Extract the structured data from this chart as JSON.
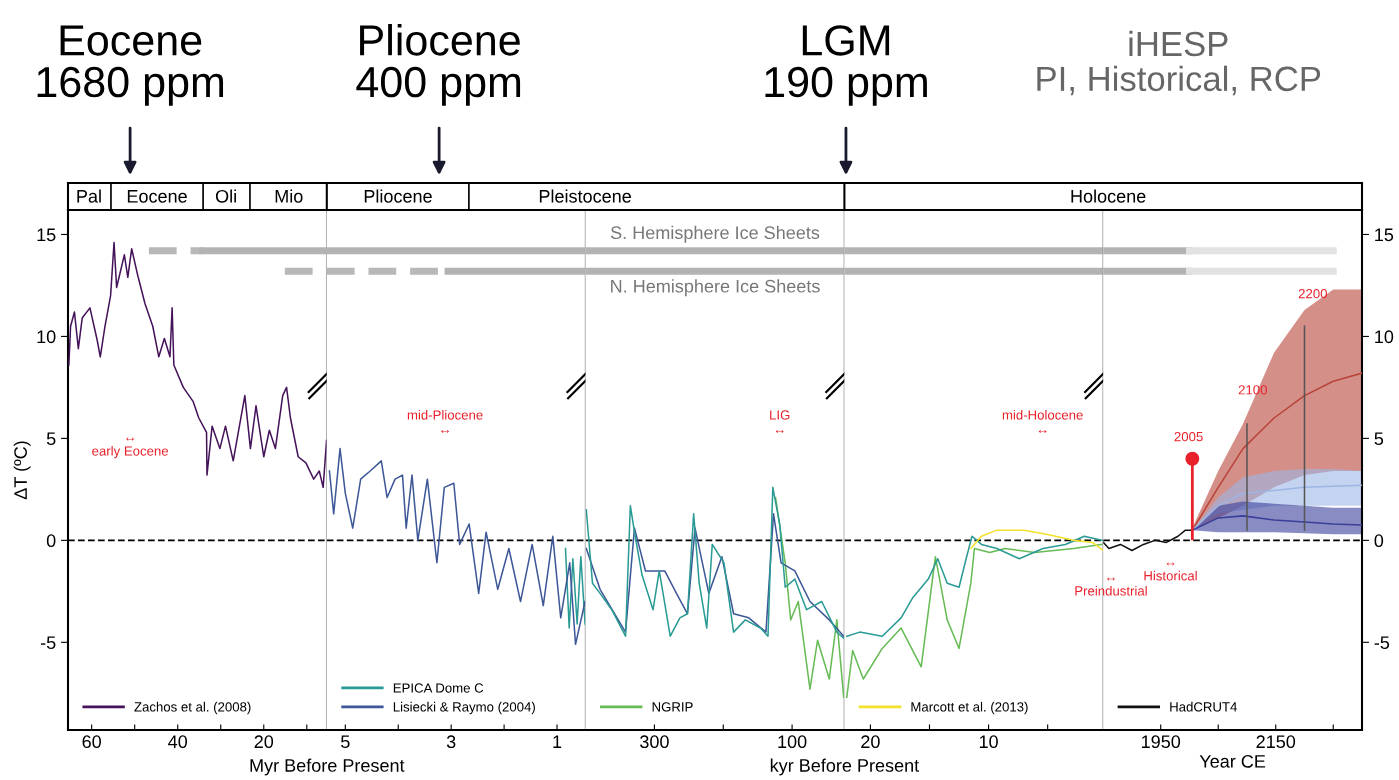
{
  "chart_data": [
    {
      "type": "line",
      "ylabel": "ΔT (ºC)",
      "xlabel": "Myr Before Present",
      "xlim": [
        65.5,
        5.35
      ],
      "xticks": [
        60,
        {
          "value": 50,
          "label": null
        },
        40,
        {
          "value": 30,
          "label": null
        },
        20,
        {
          "value": 10,
          "label": null
        }
      ],
      "ylim": [
        -9.3,
        16.2
      ],
      "yticks": [
        -5,
        0,
        5,
        10,
        15
      ],
      "legend": "lower left",
      "ref_lines": [
        {
          "axis": "y",
          "value": 0,
          "line_style": "dashed",
          "color": "#000000"
        }
      ],
      "annotations": [
        "Eocene\n1680 ppm",
        "↔\nearly Eocene",
        "Pal",
        "Eocene",
        "Oli",
        "Mio"
      ],
      "series": [
        {
          "type": "step",
          "color": "#b8b8b8",
          "line_style": "dashed",
          "x": [
            46.7,
            34.2
          ],
          "values": [
            14.2,
            14.2
          ]
        },
        {
          "type": "step",
          "color": "#b3b3b3",
          "line_style": "solid",
          "x": [
            34.2,
            5.35
          ],
          "values": [
            14.2,
            14.2
          ]
        },
        {
          "type": "step",
          "color": "#b8b8b8",
          "line_style": "dashed",
          "x": [
            15.1,
            5.35
          ],
          "values": [
            13.2,
            13.2
          ]
        },
        {
          "name": "Zachos et al. (2008)",
          "color": "#45135a",
          "x": [
            65.3,
            64.9,
            64.0,
            63.1,
            62.2,
            60.4,
            58.7,
            58.0,
            56.9,
            55.6,
            54.8,
            54.2,
            52.4,
            51.6,
            50.7,
            49.3,
            47.6,
            45.8,
            44.4,
            43.1,
            41.8,
            41.3,
            40.9,
            38.7,
            36.4,
            35.1,
            33.3,
            33.2,
            32.0,
            30.2,
            28.9,
            27.1,
            24.4,
            23.1,
            21.8,
            20.0,
            18.7,
            17.3,
            15.6,
            14.7,
            13.8,
            12.0,
            10.2,
            8.4,
            7.1,
            6.2,
            5.4
          ],
          "values": [
            8.6,
            10.5,
            11.2,
            9.4,
            10.9,
            11.4,
            9.8,
            9.0,
            10.5,
            12.0,
            14.6,
            12.4,
            14.0,
            12.9,
            14.3,
            13.0,
            11.6,
            10.5,
            9.0,
            9.9,
            9.0,
            11.4,
            8.6,
            7.5,
            6.8,
            6.0,
            5.3,
            3.2,
            5.6,
            4.5,
            5.6,
            3.9,
            7.1,
            4.5,
            6.6,
            4.1,
            5.4,
            4.5,
            7.1,
            7.5,
            6.0,
            4.1,
            3.8,
            3.0,
            3.4,
            2.6,
            4.9
          ]
        }
      ]
    },
    {
      "type": "line",
      "xlim": [
        5.35,
        0.46
      ],
      "xticks": [
        5,
        {
          "value": 4,
          "label": null
        },
        3,
        {
          "value": 2,
          "label": null
        },
        1
      ],
      "ylim": [
        -9.3,
        16.2
      ],
      "yticks": [
        -5,
        0,
        5,
        10,
        15
      ],
      "tick_labels": "x",
      "legend": "lower left",
      "ref_lines": [
        {
          "axis": "y",
          "value": 0,
          "line_style": "dashed",
          "color": "#000000"
        }
      ],
      "annotations": [
        "Pliocene\n400 ppm",
        "mid-Pliocene\n↔",
        "Pliocene",
        "Pleistocene"
      ],
      "series": [
        {
          "type": "step",
          "color": "#b3b3b3",
          "line_style": "solid",
          "x": [
            5.35,
            0.46
          ],
          "values": [
            14.2,
            14.2
          ]
        },
        {
          "type": "step",
          "color": "#b8b8b8",
          "line_style": "dashed",
          "x": [
            5.35,
            3.06
          ],
          "values": [
            13.2,
            13.2
          ]
        },
        {
          "type": "step",
          "color": "#b3b3b3",
          "line_style": "solid",
          "x": [
            3.06,
            0.46
          ],
          "values": [
            13.2,
            13.2
          ]
        },
        {
          "name": "EPICA Dome C",
          "color": "#2a9a94",
          "x": [
            0.84,
            0.77,
            0.7,
            0.62,
            0.55,
            0.47
          ],
          "values": [
            -0.4,
            -4.3,
            -0.9,
            -4.1,
            -0.8,
            -4.1
          ]
        },
        {
          "name": "Lisiecki & Raymo (2004)",
          "color": "#3d5797",
          "x": [
            5.3,
            5.22,
            5.1,
            5.0,
            4.86,
            4.71,
            4.53,
            4.32,
            4.21,
            4.06,
            3.92,
            3.85,
            3.74,
            3.63,
            3.45,
            3.27,
            3.13,
            2.95,
            2.84,
            2.66,
            2.48,
            2.34,
            2.12,
            1.91,
            1.69,
            1.47,
            1.26,
            1.08,
            0.93,
            0.76,
            0.65,
            0.47
          ],
          "values": [
            3.4,
            1.3,
            4.5,
            2.3,
            0.6,
            3.0,
            3.4,
            3.9,
            2.1,
            3.0,
            3.2,
            0.6,
            3.2,
            0.0,
            3.0,
            -1.1,
            2.6,
            2.8,
            -0.2,
            0.8,
            -2.6,
            0.4,
            -2.4,
            -0.4,
            -3.0,
            -0.2,
            -3.2,
            0.2,
            -3.8,
            -1.1,
            -5.1,
            -3.0
          ]
        }
      ]
    },
    {
      "type": "line",
      "xlabel": "kyr Before Present",
      "xlim": [
        400,
        24
      ],
      "xticks": [
        300,
        {
          "value": 200,
          "label": null
        },
        100
      ],
      "ylim": [
        -9.3,
        16.2
      ],
      "yticks": [
        -5,
        0,
        5,
        10,
        15
      ],
      "tick_labels": "x",
      "legend": "lower left",
      "ref_lines": [
        {
          "axis": "y",
          "value": 0,
          "line_style": "dashed",
          "color": "#000000"
        }
      ],
      "annotations": [
        "LGM\n190 ppm",
        "LIG\n↔"
      ],
      "series": [
        {
          "type": "step",
          "name": "S. Hemisphere Ice Sheets",
          "color": "#b3b3b3",
          "line_style": "solid",
          "x": [
            400,
            24
          ],
          "values": [
            14.2,
            14.2
          ]
        },
        {
          "type": "step",
          "name": "N. Hemisphere Ice Sheets",
          "color": "#b3b3b3",
          "line_style": "solid",
          "x": [
            400,
            24
          ],
          "values": [
            13.2,
            13.2
          ]
        },
        {
          "name": "NGRIP",
          "color": "#66bb55",
          "x": [
            124,
            110,
            102,
            91,
            74,
            63,
            46,
            35,
            25
          ],
          "values": [
            2.1,
            -1.1,
            -3.9,
            -3.0,
            -7.3,
            -4.9,
            -6.8,
            -3.9,
            -7.7
          ]
        },
        {
          "color": "#3d5797",
          "x": [
            399,
            379,
            342,
            329,
            313,
            285,
            268,
            252,
            241,
            221,
            202,
            185,
            163,
            138,
            127,
            116,
            96,
            74,
            46,
            25
          ],
          "values": [
            -0.4,
            -2.4,
            -4.5,
            0.6,
            -1.5,
            -1.5,
            -2.6,
            -3.6,
            0.6,
            -2.6,
            -0.8,
            -3.6,
            -3.8,
            -4.5,
            1.3,
            -1.1,
            -1.5,
            -3.0,
            -3.9,
            -4.7
          ]
        },
        {
          "color": "#2a9a94",
          "x": [
            399,
            390,
            379,
            362,
            342,
            335,
            329,
            318,
            302,
            293,
            277,
            263,
            252,
            243,
            235,
            224,
            216,
            199,
            185,
            168,
            146,
            135,
            128,
            118,
            110,
            96,
            79,
            57,
            35,
            25
          ],
          "values": [
            1.5,
            -2.1,
            -2.6,
            -3.4,
            -4.7,
            1.7,
            0.4,
            -1.7,
            -3.4,
            -1.5,
            -4.7,
            -3.8,
            -3.6,
            1.3,
            -2.1,
            -4.3,
            -0.2,
            -1.1,
            -4.5,
            -3.9,
            -4.3,
            -4.7,
            2.6,
            0.8,
            -2.3,
            -1.9,
            -3.4,
            -3.0,
            -4.5,
            -4.8
          ]
        }
      ]
    },
    {
      "type": "line",
      "xlim": [
        22.2,
        0.3
      ],
      "xticks": [
        20,
        {
          "value": 15,
          "label": null
        },
        10,
        {
          "value": 5,
          "label": null
        }
      ],
      "ylim": [
        -9.3,
        16.2
      ],
      "yticks": [
        -5,
        0,
        5,
        10,
        15
      ],
      "tick_labels": "x",
      "legend": "lower left",
      "ref_lines": [
        {
          "axis": "y",
          "value": 0,
          "line_style": "dashed",
          "color": "#000000"
        }
      ],
      "annotations": [
        "mid-Holocene\n↔",
        "Holocene"
      ],
      "series": [
        {
          "type": "step",
          "color": "#b3b3b3",
          "line_style": "solid",
          "x": [
            22.2,
            0.3
          ],
          "values": [
            14.2,
            14.2
          ]
        },
        {
          "type": "step",
          "color": "#b3b3b3",
          "line_style": "solid",
          "x": [
            22.2,
            0.3
          ],
          "values": [
            13.2,
            13.2
          ]
        },
        {
          "color": "#66bb55",
          "x": [
            22,
            21.5,
            20.6,
            19,
            17.4,
            15.7,
            14.5,
            13.5,
            12.5,
            11.5,
            11.2,
            9.9,
            8.6,
            6.1,
            2.8,
            0.4
          ],
          "values": [
            -7.7,
            -5.4,
            -6.8,
            -5.3,
            -4.3,
            -6.2,
            -0.8,
            -3.9,
            -5.3,
            -2.1,
            -0.4,
            -0.6,
            -0.4,
            -0.6,
            -0.4,
            -0.2
          ]
        },
        {
          "color": "#2a9a94",
          "x": [
            22,
            20.9,
            19,
            17.4,
            16.4,
            15.1,
            14.3,
            13.5,
            12.5,
            11.9,
            11.4,
            10.6,
            9.3,
            7.4,
            5.4,
            3.5,
            1.9,
            0.4
          ],
          "values": [
            -4.7,
            -4.5,
            -4.7,
            -3.8,
            -2.8,
            -1.9,
            -0.9,
            -2.1,
            -2.3,
            -0.9,
            0.2,
            -0.2,
            -0.4,
            -0.9,
            -0.4,
            -0.2,
            0.2,
            0.0
          ]
        },
        {
          "name": "Marcott et al. (2013)",
          "color": "#f3e02a",
          "x": [
            11.5,
            10.6,
            9.3,
            7.0,
            5.1,
            2.8,
            1.2,
            0.3
          ],
          "values": [
            -0.4,
            0.2,
            0.5,
            0.5,
            0.3,
            0.0,
            -0.1,
            -0.5
          ]
        }
      ]
    },
    {
      "type": "line",
      "xlabel": "Year CE",
      "xlim": [
        1850,
        2300
      ],
      "xticks": [
        1950,
        {
          "value": 2050,
          "label": null
        },
        2150,
        {
          "value": 2250,
          "label": null
        }
      ],
      "ylim": [
        -9.3,
        16.2
      ],
      "yticks": [
        -5,
        0,
        5,
        10,
        15
      ],
      "legend": "lower left",
      "ref_lines": [
        {
          "axis": "y",
          "value": 0,
          "line_style": "dashed",
          "color": "#000000"
        }
      ],
      "annotations": [
        "iHESP\nPI, Historical, RCP",
        "2005",
        "2100",
        "2200",
        "↔\nPreindustrial",
        "↔\nHistorical"
      ],
      "series": [
        {
          "type": "step",
          "color": "#b3b3b3",
          "line_style": "solid",
          "x": [
            1850,
            2000
          ],
          "values": [
            14.2,
            14.2
          ]
        },
        {
          "type": "step",
          "color": "#e2e2e2",
          "line_style": "solid",
          "x": [
            2000,
            2250
          ],
          "values": [
            14.2,
            14.2
          ]
        },
        {
          "type": "step",
          "color": "#b3b3b3",
          "line_style": "solid",
          "x": [
            1850,
            2000
          ],
          "values": [
            13.2,
            13.2
          ]
        },
        {
          "type": "step",
          "color": "#e2e2e2",
          "line_style": "solid",
          "x": [
            2000,
            2250
          ],
          "values": [
            13.2,
            13.2
          ]
        },
        {
          "color": "#b8443a",
          "x": [
            2005,
            2050,
            2093,
            2147,
            2200,
            2250,
            2300
          ],
          "values": [
            0.5,
            2.6,
            4.5,
            6.0,
            7.1,
            7.8,
            8.2
          ],
          "lower": [
            0.5,
            1.1,
            1.7,
            2.6,
            3.2,
            3.4,
            3.4
          ],
          "upper": [
            0.6,
            3.4,
            5.7,
            9.2,
            11.3,
            12.3,
            12.3
          ]
        },
        {
          "color": "#9db6e4",
          "x": [
            2005,
            2050,
            2093,
            2147,
            2200,
            2250,
            2300
          ],
          "values": [
            0.5,
            1.7,
            2.3,
            2.45,
            2.6,
            2.65,
            2.7
          ],
          "lower": [
            0.5,
            1.3,
            1.5,
            1.7,
            1.7,
            1.7,
            1.7
          ],
          "upper": [
            0.5,
            2.1,
            3.1,
            3.4,
            3.5,
            3.5,
            3.4
          ]
        },
        {
          "color": "#3a3f9a",
          "x": [
            2005,
            2050,
            2093,
            2147,
            2200,
            2250,
            2300
          ],
          "values": [
            0.5,
            1.1,
            1.2,
            1.0,
            0.9,
            0.8,
            0.75
          ],
          "lower": [
            0.5,
            0.4,
            0.4,
            0.4,
            0.35,
            0.3,
            0.3
          ],
          "upper": [
            0.5,
            1.7,
            1.9,
            1.8,
            1.7,
            1.6,
            1.6
          ]
        },
        {
          "name": "HadCRUT4",
          "color": "#111111",
          "x": [
            1850,
            1860,
            1880,
            1900,
            1920,
            1940,
            1960,
            1980,
            1993,
            2005
          ],
          "values": [
            -0.1,
            -0.4,
            -0.2,
            -0.5,
            -0.2,
            0,
            -0.1,
            0.2,
            0.5,
            0.5
          ]
        },
        {
          "color": "#555555",
          "x": [
            2100,
            2100
          ],
          "values": [
            0.5,
            5.7
          ]
        },
        {
          "color": "#555555",
          "x": [
            2200,
            2200
          ],
          "values": [
            0.5,
            10.5
          ]
        },
        {
          "type": "lollipop",
          "color": "#e8202a",
          "marker": "circle",
          "x": [
            2005
          ],
          "values": [
            4.0
          ]
        }
      ]
    }
  ]
}
